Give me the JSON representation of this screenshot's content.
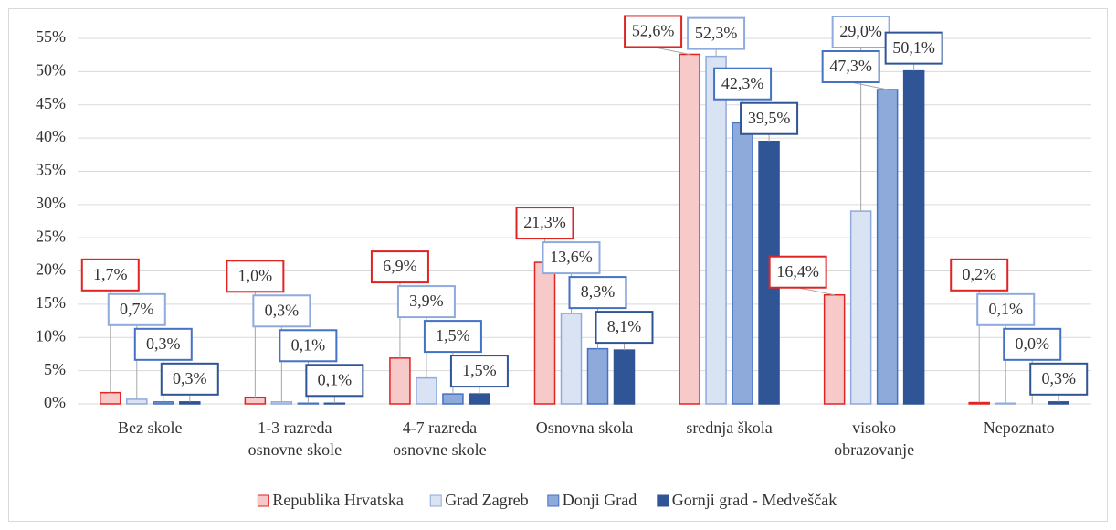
{
  "chart_data": {
    "type": "bar",
    "categories": [
      "Bez skole",
      "1-3 razreda osnovne skole",
      "4-7 razreda osnovne skole",
      "Osnovna skola",
      "srednja škola",
      "visoko obrazovanje",
      "Nepoznato"
    ],
    "series": [
      {
        "name": "Republika Hrvatska",
        "color": "#f8c9c9",
        "stroke": "#e02424",
        "values": [
          1.7,
          1.0,
          6.9,
          21.3,
          52.6,
          16.4,
          0.2
        ],
        "value_labels": [
          "1,7%",
          "1,0%",
          "6,9%",
          "21,3%",
          "52,6%",
          "16,4%",
          "0,2%"
        ]
      },
      {
        "name": "Grad Zagreb",
        "color": "#dae3f3",
        "stroke": "#8faadc",
        "values": [
          0.7,
          0.3,
          3.9,
          13.6,
          52.3,
          29.0,
          0.1
        ],
        "value_labels": [
          "0,7%",
          "0,3%",
          "3,9%",
          "13,6%",
          "52,3%",
          "29,0%",
          "0,1%"
        ]
      },
      {
        "name": "Donji Grad",
        "color": "#8eaadb",
        "stroke": "#4472c4",
        "values": [
          0.3,
          0.1,
          1.5,
          8.3,
          42.3,
          47.3,
          0.0
        ],
        "value_labels": [
          "0,3%",
          "0,1%",
          "1,5%",
          "8,3%",
          "42,3%",
          "47,3%",
          "0,0%"
        ]
      },
      {
        "name": "Gornji grad - Medveščak",
        "color": "#2f5597",
        "stroke": "#2f5597",
        "values": [
          0.3,
          0.1,
          1.5,
          8.1,
          39.5,
          50.1,
          0.3
        ],
        "value_labels": [
          "0,3%",
          "0,1%",
          "1,5%",
          "8,1%",
          "39,5%",
          "50,1%",
          "0,3%"
        ]
      }
    ],
    "ylim": [
      0,
      55
    ],
    "yticks": [
      {
        "value": 0,
        "label": "0%"
      },
      {
        "value": 5,
        "label": "5%"
      },
      {
        "value": 10,
        "label": "10%"
      },
      {
        "value": 15,
        "label": "15%"
      },
      {
        "value": 20,
        "label": "20%"
      },
      {
        "value": 25,
        "label": "25%"
      },
      {
        "value": 30,
        "label": "30%"
      },
      {
        "value": 35,
        "label": "35%"
      },
      {
        "value": 40,
        "label": "40%"
      },
      {
        "value": 45,
        "label": "45%"
      },
      {
        "value": 50,
        "label": "50%"
      },
      {
        "value": 55,
        "label": "55%"
      }
    ],
    "grid": true,
    "legend": "bottom"
  }
}
